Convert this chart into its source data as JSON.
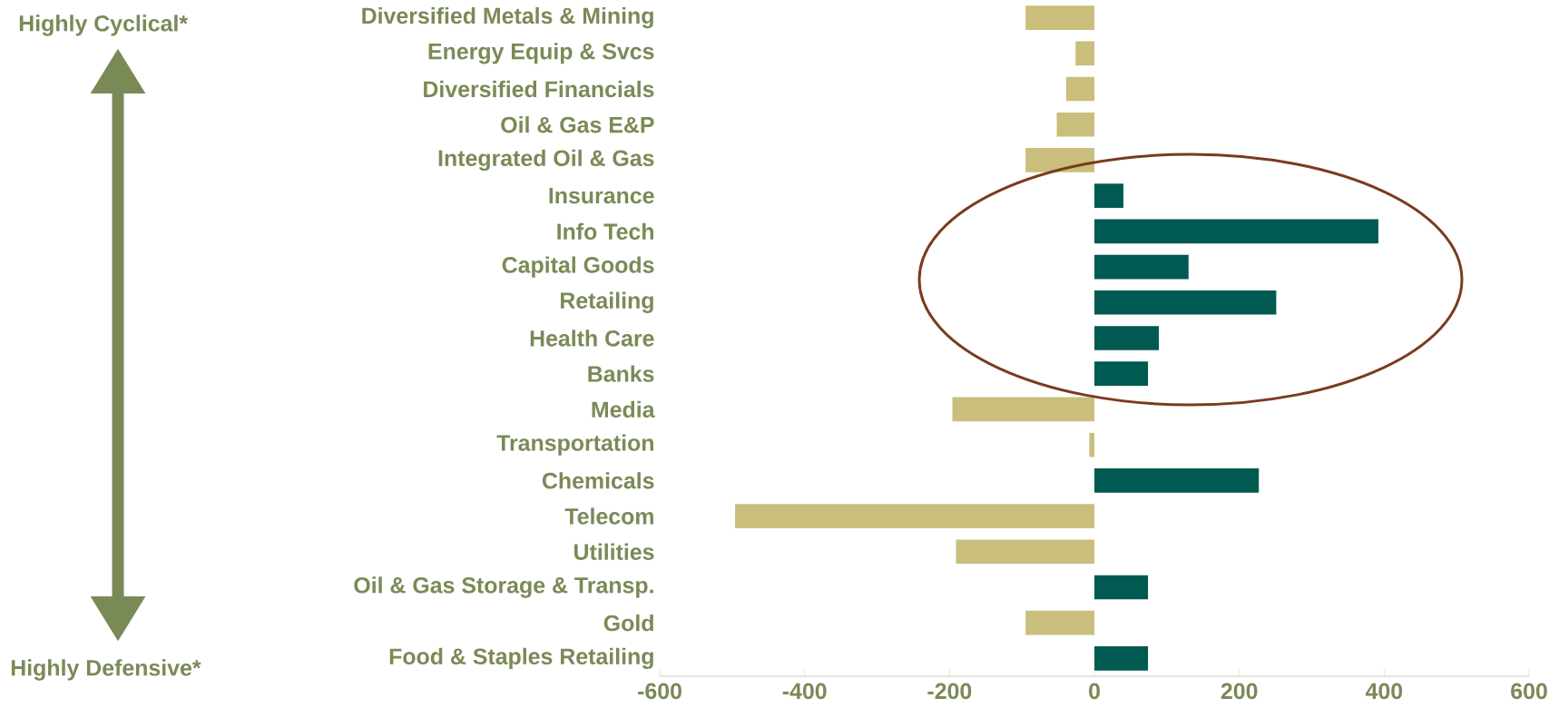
{
  "chart_data": {
    "type": "bar",
    "orientation": "horizontal",
    "categories": [
      "Diversified Metals & Mining",
      "Energy Equip & Svcs",
      "Diversified Financials",
      "Oil & Gas E&P",
      "Integrated Oil & Gas",
      "Insurance",
      "Info Tech",
      "Capital Goods",
      "Retailing",
      "Health Care",
      "Banks",
      "Media",
      "Transportation",
      "Chemicals",
      "Telecom",
      "Utilities",
      "Oil & Gas Storage & Transp.",
      "Gold",
      "Food & Staples Retailing"
    ],
    "values": [
      -95,
      -26,
      -39,
      -52,
      -95,
      40,
      392,
      130,
      251,
      89,
      74,
      -196,
      -7,
      227,
      -496,
      -191,
      74,
      -95,
      74
    ],
    "colors": [
      "#c9be7c",
      "#c9be7c",
      "#c9be7c",
      "#c9be7c",
      "#c9be7c",
      "#005a52",
      "#005a52",
      "#005a52",
      "#005a52",
      "#005a52",
      "#005a52",
      "#c9be7c",
      "#c9be7c",
      "#005a52",
      "#c9be7c",
      "#c9be7c",
      "#005a52",
      "#c9be7c",
      "#005a52"
    ],
    "xlim": [
      -600,
      600
    ],
    "xticks": [
      -600,
      -400,
      -200,
      0,
      200,
      400,
      600
    ],
    "annotations": [
      "Highly Cyclical*",
      "Highly Defensive*"
    ]
  }
}
